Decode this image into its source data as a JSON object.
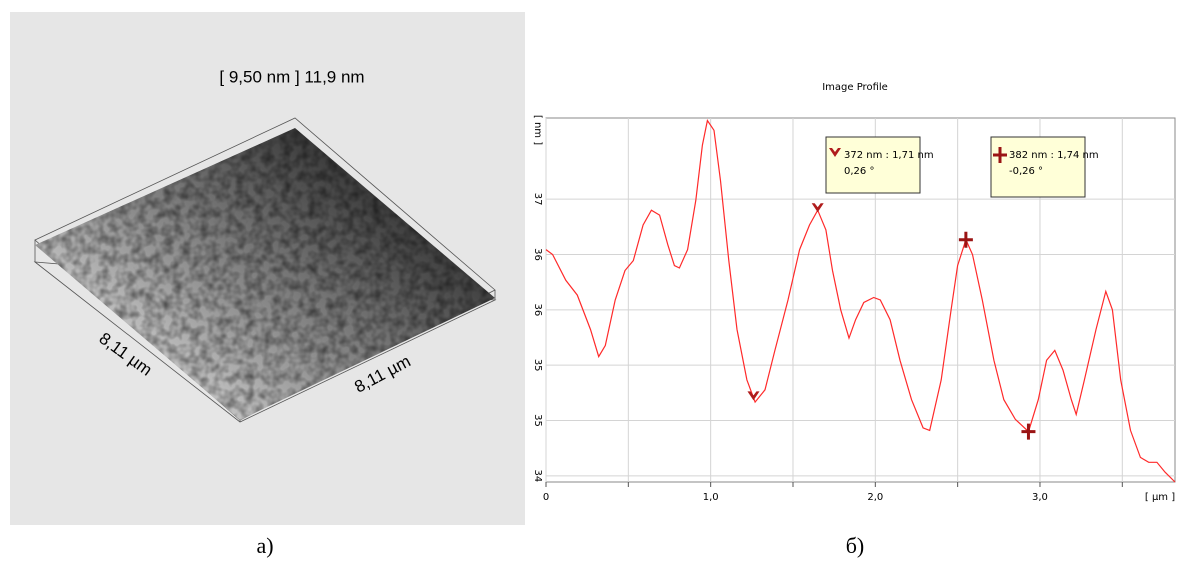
{
  "surface_image": {
    "title": "[ 9,50 nm ] 11,9 nm",
    "x_label": "8,11 µm",
    "y_label": "8,11 µm",
    "caption": "а)"
  },
  "chart_data": {
    "type": "line",
    "title": "Image Profile",
    "caption": "б)",
    "x_label": "[ µm ]",
    "y_label": "[ nm ]",
    "x": [
      0,
      0.04,
      0.12,
      0.19,
      0.27,
      0.32,
      0.36,
      0.42,
      0.48,
      0.53,
      0.59,
      0.64,
      0.69,
      0.74,
      0.78,
      0.81,
      0.86,
      0.91,
      0.95,
      0.98,
      1.02,
      1.06,
      1.11,
      1.16,
      1.22,
      1.27,
      1.33,
      1.39,
      1.47,
      1.54,
      1.6,
      1.65,
      1.7,
      1.74,
      1.79,
      1.84,
      1.88,
      1.93,
      1.99,
      2.03,
      2.09,
      2.15,
      2.22,
      2.29,
      2.33,
      2.4,
      2.46,
      2.5,
      2.55,
      2.59,
      2.65,
      2.72,
      2.78,
      2.85,
      2.93,
      2.99,
      3.04,
      3.09,
      3.14,
      3.19,
      3.22,
      3.27,
      3.34,
      3.4,
      3.44,
      3.49,
      3.55,
      3.61,
      3.66,
      3.71,
      3.76,
      3.82
    ],
    "values": [
      36.19,
      36.15,
      35.94,
      35.82,
      35.54,
      35.32,
      35.41,
      35.78,
      36.02,
      36.1,
      36.39,
      36.51,
      36.47,
      36.23,
      36.06,
      36.04,
      36.19,
      36.59,
      37.04,
      37.24,
      37.16,
      36.75,
      36.1,
      35.54,
      35.13,
      34.95,
      35.05,
      35.37,
      35.78,
      36.19,
      36.39,
      36.51,
      36.35,
      36.02,
      35.7,
      35.47,
      35.62,
      35.76,
      35.8,
      35.78,
      35.62,
      35.29,
      34.97,
      34.74,
      34.72,
      35.13,
      35.7,
      36.06,
      36.27,
      36.15,
      35.78,
      35.29,
      34.97,
      34.81,
      34.71,
      34.97,
      35.29,
      35.37,
      35.21,
      34.97,
      34.85,
      35.13,
      35.54,
      35.85,
      35.7,
      35.13,
      34.72,
      34.5,
      34.46,
      34.46,
      34.38,
      34.3
    ],
    "color": "#ff2a2a",
    "markers": [
      {
        "shape": "v",
        "color": "#b01c1c",
        "x": [
          1.26,
          1.65
        ],
        "y": [
          34.98,
          36.51
        ]
      },
      {
        "shape": "cross",
        "color": "#9a1414",
        "x": [
          2.55,
          2.93
        ],
        "y": [
          36.27,
          34.71
        ]
      }
    ],
    "annotations": [
      {
        "marker": "v",
        "lines": [
          "372 nm : 1,71 nm",
          "0,26 °"
        ]
      },
      {
        "marker": "cross",
        "lines": [
          "382 nm : 1,74 nm",
          "-0,26 °"
        ]
      }
    ],
    "xlim": [
      0,
      3.82
    ],
    "ylim": [
      34.3,
      37.26
    ],
    "xticks": [
      0,
      {
        "value": 1,
        "label": "1,0"
      },
      {
        "value": 2,
        "label": "2,0"
      },
      {
        "value": 3,
        "label": "3,0"
      }
    ],
    "xminor": [
      0.5,
      1.5,
      2.5,
      3.5
    ],
    "yticks": [
      {
        "value": 36.6,
        "label": "37"
      },
      {
        "value": 36.15,
        "label": "36"
      },
      {
        "value": 35.7,
        "label": "36"
      },
      {
        "value": 35.25,
        "label": "35"
      },
      {
        "value": 34.8,
        "label": "35"
      },
      {
        "value": 34.35,
        "label": "34"
      }
    ],
    "grid": true
  }
}
